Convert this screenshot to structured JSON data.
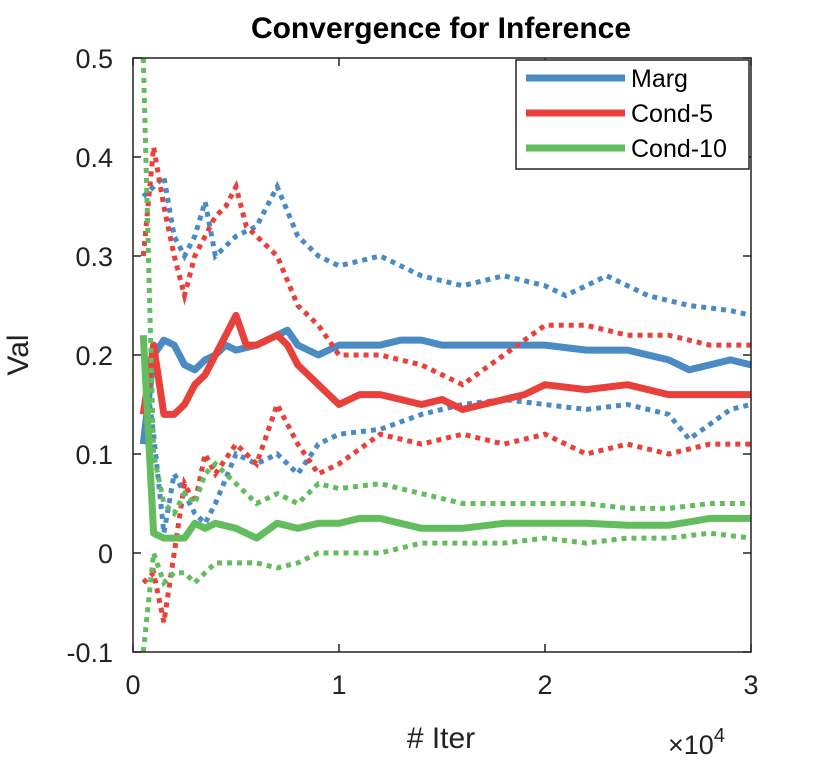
{
  "chart_data": {
    "type": "line",
    "title": "Convergence for Inference",
    "xlabel": "# Iter",
    "ylabel": "Val",
    "x_multiplier_label": "×10",
    "x_multiplier_exponent": "4",
    "xlim": [
      0,
      3
    ],
    "ylim": [
      -0.1,
      0.5
    ],
    "xticks": [
      0,
      1,
      2,
      3
    ],
    "xtick_labels": [
      "0",
      "1",
      "2",
      "3"
    ],
    "yticks": [
      -0.1,
      0,
      0.1,
      0.2,
      0.3,
      0.4,
      0.5
    ],
    "ytick_labels": [
      "-0.1",
      "0",
      "0.1",
      "0.2",
      "0.3",
      "0.4",
      "0.5"
    ],
    "grid": false,
    "legend_position": "top-right",
    "series": [
      {
        "name": "Marg",
        "color": "#4a8bc4",
        "mean": {
          "x": [
            0.05,
            0.1,
            0.15,
            0.2,
            0.25,
            0.3,
            0.35,
            0.4,
            0.45,
            0.5,
            0.6,
            0.7,
            0.75,
            0.8,
            0.9,
            1.0,
            1.1,
            1.2,
            1.3,
            1.4,
            1.5,
            1.6,
            1.7,
            1.8,
            1.9,
            2.0,
            2.2,
            2.4,
            2.6,
            2.7,
            2.8,
            2.9,
            3.0
          ],
          "y": [
            0.11,
            0.2,
            0.215,
            0.21,
            0.19,
            0.185,
            0.195,
            0.2,
            0.21,
            0.205,
            0.21,
            0.22,
            0.225,
            0.21,
            0.2,
            0.21,
            0.21,
            0.21,
            0.215,
            0.215,
            0.21,
            0.21,
            0.21,
            0.21,
            0.21,
            0.21,
            0.205,
            0.205,
            0.195,
            0.185,
            0.19,
            0.195,
            0.19
          ]
        },
        "upper": {
          "x": [
            0.05,
            0.1,
            0.15,
            0.2,
            0.25,
            0.3,
            0.35,
            0.4,
            0.5,
            0.6,
            0.7,
            0.8,
            0.9,
            1.0,
            1.2,
            1.4,
            1.6,
            1.8,
            2.0,
            2.1,
            2.3,
            2.5,
            2.7,
            2.9,
            3.0
          ],
          "y": [
            0.36,
            0.37,
            0.38,
            0.32,
            0.3,
            0.32,
            0.355,
            0.3,
            0.32,
            0.33,
            0.37,
            0.32,
            0.3,
            0.29,
            0.3,
            0.28,
            0.27,
            0.28,
            0.27,
            0.26,
            0.28,
            0.26,
            0.25,
            0.245,
            0.24
          ]
        },
        "lower": {
          "x": [
            0.05,
            0.1,
            0.15,
            0.2,
            0.25,
            0.3,
            0.35,
            0.4,
            0.5,
            0.6,
            0.7,
            0.8,
            0.9,
            1.0,
            1.2,
            1.4,
            1.6,
            1.8,
            2.0,
            2.2,
            2.4,
            2.6,
            2.7,
            2.8,
            2.9,
            3.0
          ],
          "y": [
            0.2,
            0.12,
            0.02,
            0.08,
            0.06,
            0.04,
            0.03,
            0.05,
            0.1,
            0.09,
            0.1,
            0.08,
            0.11,
            0.12,
            0.125,
            0.14,
            0.15,
            0.155,
            0.15,
            0.145,
            0.15,
            0.14,
            0.115,
            0.13,
            0.145,
            0.15
          ]
        }
      },
      {
        "name": "Cond-5",
        "color": "#e8413c",
        "mean": {
          "x": [
            0.05,
            0.1,
            0.15,
            0.2,
            0.25,
            0.3,
            0.35,
            0.4,
            0.45,
            0.5,
            0.55,
            0.6,
            0.7,
            0.75,
            0.8,
            0.9,
            1.0,
            1.1,
            1.2,
            1.3,
            1.4,
            1.5,
            1.6,
            1.7,
            1.8,
            1.9,
            2.0,
            2.2,
            2.4,
            2.6,
            2.8,
            3.0
          ],
          "y": [
            0.14,
            0.21,
            0.14,
            0.14,
            0.15,
            0.17,
            0.18,
            0.2,
            0.22,
            0.24,
            0.21,
            0.21,
            0.22,
            0.21,
            0.19,
            0.17,
            0.15,
            0.16,
            0.16,
            0.155,
            0.15,
            0.155,
            0.145,
            0.15,
            0.155,
            0.16,
            0.17,
            0.165,
            0.17,
            0.16,
            0.16,
            0.16
          ]
        },
        "upper": {
          "x": [
            0.05,
            0.1,
            0.15,
            0.2,
            0.25,
            0.3,
            0.35,
            0.4,
            0.45,
            0.5,
            0.55,
            0.6,
            0.7,
            0.8,
            0.9,
            1.0,
            1.2,
            1.4,
            1.6,
            1.8,
            2.0,
            2.2,
            2.4,
            2.6,
            2.8,
            3.0
          ],
          "y": [
            0.3,
            0.41,
            0.35,
            0.3,
            0.26,
            0.3,
            0.32,
            0.34,
            0.35,
            0.37,
            0.33,
            0.32,
            0.3,
            0.25,
            0.23,
            0.2,
            0.2,
            0.19,
            0.17,
            0.2,
            0.23,
            0.23,
            0.22,
            0.22,
            0.21,
            0.21
          ]
        },
        "lower": {
          "x": [
            0.05,
            0.1,
            0.15,
            0.2,
            0.25,
            0.3,
            0.35,
            0.4,
            0.5,
            0.6,
            0.7,
            0.8,
            0.9,
            1.0,
            1.2,
            1.4,
            1.6,
            1.8,
            2.0,
            2.2,
            2.4,
            2.6,
            2.8,
            3.0
          ],
          "y": [
            -0.03,
            -0.02,
            -0.07,
            0.0,
            0.07,
            0.05,
            0.1,
            0.08,
            0.11,
            0.09,
            0.15,
            0.11,
            0.08,
            0.09,
            0.12,
            0.11,
            0.12,
            0.11,
            0.12,
            0.1,
            0.11,
            0.1,
            0.11,
            0.11
          ]
        }
      },
      {
        "name": "Cond-10",
        "color": "#63bd5e",
        "mean": {
          "x": [
            0.05,
            0.1,
            0.15,
            0.2,
            0.25,
            0.3,
            0.35,
            0.4,
            0.5,
            0.6,
            0.7,
            0.8,
            0.9,
            1.0,
            1.1,
            1.2,
            1.4,
            1.6,
            1.8,
            2.0,
            2.2,
            2.4,
            2.6,
            2.8,
            3.0
          ],
          "y": [
            0.22,
            0.02,
            0.015,
            0.015,
            0.015,
            0.03,
            0.025,
            0.03,
            0.025,
            0.015,
            0.03,
            0.025,
            0.03,
            0.03,
            0.035,
            0.035,
            0.025,
            0.025,
            0.03,
            0.03,
            0.03,
            0.028,
            0.028,
            0.035,
            0.035
          ]
        },
        "upper": {
          "x": [
            0.05,
            0.1,
            0.15,
            0.2,
            0.25,
            0.3,
            0.35,
            0.4,
            0.5,
            0.6,
            0.7,
            0.8,
            0.9,
            1.0,
            1.2,
            1.4,
            1.6,
            1.8,
            2.0,
            2.2,
            2.4,
            2.6,
            2.8,
            3.0
          ],
          "y": [
            0.5,
            0.1,
            0.05,
            0.04,
            0.06,
            0.05,
            0.08,
            0.09,
            0.07,
            0.05,
            0.06,
            0.05,
            0.07,
            0.065,
            0.07,
            0.06,
            0.05,
            0.05,
            0.05,
            0.05,
            0.045,
            0.045,
            0.05,
            0.05
          ]
        },
        "lower": {
          "x": [
            0.05,
            0.1,
            0.15,
            0.2,
            0.25,
            0.3,
            0.35,
            0.4,
            0.5,
            0.6,
            0.7,
            0.8,
            0.9,
            1.0,
            1.2,
            1.4,
            1.6,
            1.8,
            2.0,
            2.2,
            2.4,
            2.6,
            2.8,
            3.0
          ],
          "y": [
            -0.1,
            0.0,
            -0.03,
            -0.02,
            -0.02,
            -0.03,
            -0.02,
            -0.01,
            -0.01,
            -0.01,
            -0.015,
            -0.01,
            0.0,
            0.0,
            0.0,
            0.01,
            0.01,
            0.01,
            0.015,
            0.01,
            0.015,
            0.015,
            0.02,
            0.015
          ]
        }
      }
    ]
  }
}
